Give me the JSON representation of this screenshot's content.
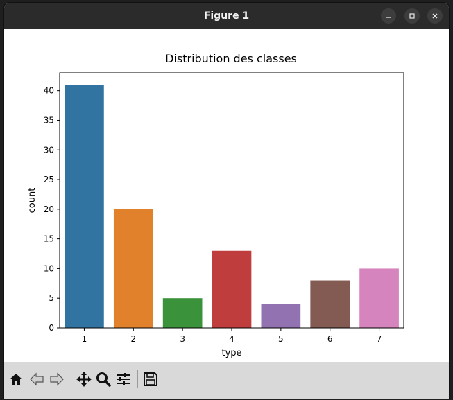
{
  "window": {
    "title": "Figure 1"
  },
  "icons": {
    "minimize": "minimize-icon",
    "maximize": "maximize-icon",
    "close": "close-icon",
    "home": "home-icon",
    "back": "arrow-left-icon",
    "forward": "arrow-right-icon",
    "pan": "move-icon",
    "zoom": "magnifier-icon",
    "configure": "sliders-icon",
    "save": "floppy-disk-icon"
  },
  "chart_data": {
    "type": "bar",
    "title": "Distribution des classes",
    "xlabel": "type",
    "ylabel": "count",
    "categories": [
      "1",
      "2",
      "3",
      "4",
      "5",
      "6",
      "7"
    ],
    "values": [
      41,
      20,
      5,
      13,
      4,
      8,
      10
    ],
    "colors": [
      "#3274a1",
      "#e1812c",
      "#3a923a",
      "#c03d3e",
      "#9372b2",
      "#845b53",
      "#d684bd"
    ],
    "ylim": [
      0,
      43
    ],
    "yticks": [
      0,
      5,
      10,
      15,
      20,
      25,
      30,
      35,
      40
    ],
    "grid": false
  }
}
